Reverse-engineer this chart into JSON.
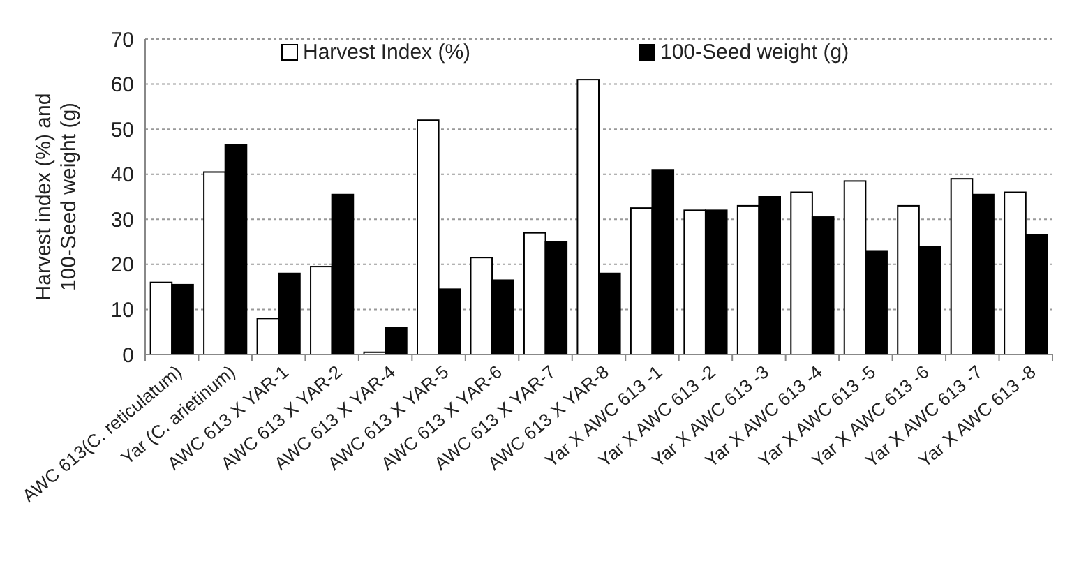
{
  "chart_data": {
    "type": "bar",
    "ylabel": "Harvest index (%) and 100-Seed weight (g)",
    "categories": [
      "AWC 613(C. reticulatum)",
      "Yar (C. arietinum)",
      "AWC 613 X YAR-1",
      "AWC 613 X YAR-2",
      "AWC 613 X YAR-4",
      "AWC 613 X YAR-5",
      "AWC 613 X YAR-6",
      "AWC 613 X YAR-7",
      "AWC 613 X YAR-8",
      "Yar X AWC 613 -1",
      "Yar X AWC 613 -2",
      "Yar X AWC 613 -3",
      "Yar X AWC 613 -4",
      "Yar X AWC 613 -5",
      "Yar X AWC 613 -6",
      "Yar X AWC 613 -7",
      "Yar X AWC 613 -8"
    ],
    "series": [
      {
        "name": "Harvest Index (%)",
        "color": "#ffffff",
        "values": [
          16,
          40.5,
          8,
          19.5,
          0.5,
          52,
          21.5,
          27,
          61,
          32.5,
          32,
          33,
          36,
          38.5,
          33,
          39,
          36
        ]
      },
      {
        "name": "100-Seed weight (g)",
        "color": "#000000",
        "values": [
          15.5,
          46.5,
          18,
          35.5,
          6,
          14.5,
          16.5,
          25,
          18,
          41,
          32,
          35,
          30.5,
          23,
          24,
          35.5,
          26.5
        ]
      }
    ],
    "ylim": [
      0,
      70
    ],
    "yticks": [
      0,
      10,
      20,
      30,
      40,
      50,
      60,
      70
    ],
    "grid": "y",
    "legend": "top"
  }
}
